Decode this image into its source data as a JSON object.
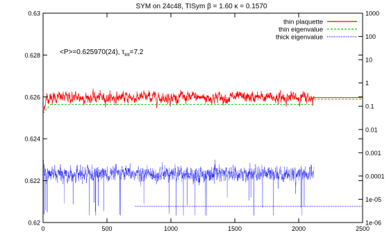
{
  "chart_data": {
    "type": "line",
    "title": "SYM on 24c48, TISym  β = 1.60  κ = 0.1570",
    "annotation": {
      "prefix": "<P>=0.625970(24),  τ",
      "subscript": "int",
      "suffix": "=7.2"
    },
    "xlim": [
      0,
      2500
    ],
    "ylim_left": [
      0.62,
      0.63
    ],
    "ylim_right_log": [
      1e-06,
      1000
    ],
    "x_ticks": [
      0,
      500,
      1000,
      1500,
      2000,
      2500
    ],
    "y_left_ticks": [
      "0.62",
      "0.622",
      "0.624",
      "0.626",
      "0.628",
      "0.63"
    ],
    "y_right_ticks": [
      "1e-06",
      "1e-05",
      "0.0001",
      "0.001",
      "0.01",
      "0.1",
      "1",
      "10",
      "100",
      "1000"
    ],
    "legend_position": "top-right",
    "series": [
      {
        "name": "thin plaquette",
        "axis": "left",
        "color": "#ff0000",
        "style": "solid",
        "n_points": 2120,
        "x_start": 0,
        "x_end": 2120,
        "initial_value": 0.6244,
        "equilibrium_mean": 0.62597,
        "fluctuation": 0.00022,
        "tail": {
          "x": [
            2120,
            2500
          ],
          "value": 0.62597
        }
      },
      {
        "name": "thin eigenvalue",
        "axis": "right",
        "color": "#00cc00",
        "style": "dashed",
        "segments": [
          {
            "x": [
              0,
              60
            ],
            "values": [
              0.05,
              0.12
            ]
          },
          {
            "x": [
              60,
              2120
            ],
            "value": 0.12
          },
          {
            "x": [
              2120,
              2500
            ],
            "value": 0.2
          }
        ]
      },
      {
        "name": "thick eigenvalue",
        "axis": "right",
        "color": "#0000ff",
        "style": "dotted",
        "n_points": 2120,
        "x_start": 0,
        "x_end": 2120,
        "initial_value": 0.00035,
        "equilibrium_mean": 0.00012,
        "dips_to": 2e-06,
        "tail": {
          "x": [
            720,
            2500
          ],
          "value": 5e-06
        }
      }
    ]
  }
}
